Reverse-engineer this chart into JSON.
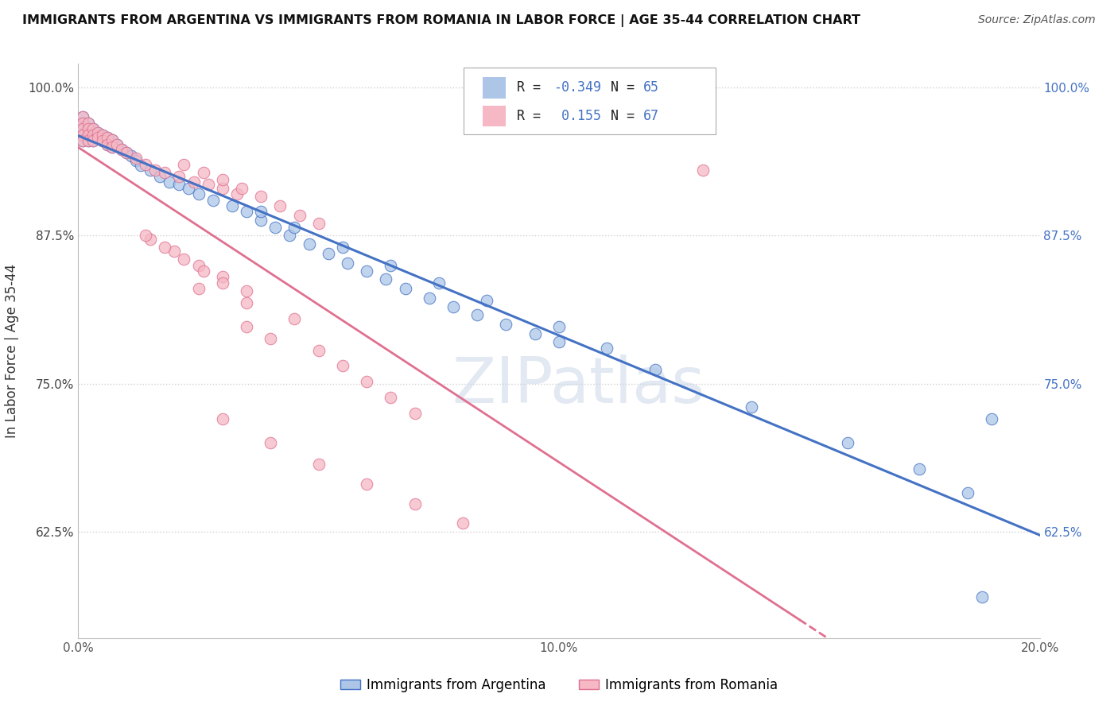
{
  "title": "IMMIGRANTS FROM ARGENTINA VS IMMIGRANTS FROM ROMANIA IN LABOR FORCE | AGE 35-44 CORRELATION CHART",
  "source": "Source: ZipAtlas.com",
  "ylabel_label": "In Labor Force | Age 35-44",
  "legend_label1": "Immigrants from Argentina",
  "legend_label2": "Immigrants from Romania",
  "R1": -0.349,
  "N1": 65,
  "R2": 0.155,
  "N2": 67,
  "color1": "#adc6e8",
  "color2": "#f5b8c4",
  "line_color1": "#4472c4",
  "line_color2": "#e07090",
  "xmin": 0.0,
  "xmax": 0.2,
  "ymin": 0.535,
  "ymax": 1.02,
  "yticks": [
    0.625,
    0.75,
    0.875,
    1.0
  ],
  "ytick_labels": [
    "62.5%",
    "75.0%",
    "87.5%",
    "100.0%"
  ],
  "xticks": [
    0.0,
    0.05,
    0.1,
    0.15,
    0.2
  ],
  "xtick_labels": [
    "0.0%",
    "",
    "10.0%",
    "",
    "20.0%"
  ],
  "watermark_text": "ZIPatlas",
  "background_color": "#ffffff",
  "grid_color": "#d0d0d0",
  "argentina_x": [
    0.001,
    0.001,
    0.001,
    0.001,
    0.001,
    0.002,
    0.002,
    0.002,
    0.002,
    0.003,
    0.003,
    0.003,
    0.004,
    0.004,
    0.005,
    0.005,
    0.006,
    0.006,
    0.007,
    0.007,
    0.008,
    0.009,
    0.01,
    0.011,
    0.012,
    0.013,
    0.015,
    0.017,
    0.019,
    0.021,
    0.023,
    0.025,
    0.028,
    0.032,
    0.035,
    0.038,
    0.041,
    0.044,
    0.048,
    0.052,
    0.056,
    0.06,
    0.064,
    0.068,
    0.073,
    0.078,
    0.083,
    0.089,
    0.095,
    0.1,
    0.038,
    0.045,
    0.055,
    0.065,
    0.075,
    0.085,
    0.1,
    0.11,
    0.12,
    0.14,
    0.16,
    0.175,
    0.185,
    0.19,
    0.188
  ],
  "argentina_y": [
    0.975,
    0.97,
    0.965,
    0.96,
    0.955,
    0.97,
    0.965,
    0.96,
    0.955,
    0.965,
    0.96,
    0.955,
    0.962,
    0.958,
    0.96,
    0.955,
    0.958,
    0.952,
    0.956,
    0.95,
    0.952,
    0.948,
    0.945,
    0.942,
    0.938,
    0.934,
    0.93,
    0.925,
    0.92,
    0.918,
    0.915,
    0.91,
    0.905,
    0.9,
    0.895,
    0.888,
    0.882,
    0.875,
    0.868,
    0.86,
    0.852,
    0.845,
    0.838,
    0.83,
    0.822,
    0.815,
    0.808,
    0.8,
    0.792,
    0.785,
    0.895,
    0.882,
    0.865,
    0.85,
    0.835,
    0.82,
    0.798,
    0.78,
    0.762,
    0.73,
    0.7,
    0.678,
    0.658,
    0.72,
    0.57
  ],
  "romania_x": [
    0.001,
    0.001,
    0.001,
    0.001,
    0.001,
    0.002,
    0.002,
    0.002,
    0.002,
    0.003,
    0.003,
    0.003,
    0.004,
    0.004,
    0.005,
    0.005,
    0.006,
    0.006,
    0.007,
    0.007,
    0.008,
    0.009,
    0.01,
    0.012,
    0.014,
    0.016,
    0.018,
    0.021,
    0.024,
    0.027,
    0.03,
    0.033,
    0.022,
    0.026,
    0.03,
    0.034,
    0.038,
    0.042,
    0.046,
    0.05,
    0.015,
    0.02,
    0.025,
    0.03,
    0.035,
    0.014,
    0.018,
    0.022,
    0.026,
    0.03,
    0.025,
    0.035,
    0.045,
    0.035,
    0.04,
    0.05,
    0.055,
    0.06,
    0.065,
    0.07,
    0.03,
    0.04,
    0.05,
    0.06,
    0.07,
    0.08,
    0.13
  ],
  "romania_y": [
    0.975,
    0.97,
    0.965,
    0.96,
    0.955,
    0.97,
    0.965,
    0.96,
    0.955,
    0.965,
    0.96,
    0.955,
    0.962,
    0.958,
    0.96,
    0.955,
    0.958,
    0.952,
    0.956,
    0.95,
    0.952,
    0.948,
    0.945,
    0.94,
    0.935,
    0.93,
    0.928,
    0.925,
    0.92,
    0.918,
    0.915,
    0.91,
    0.935,
    0.928,
    0.922,
    0.915,
    0.908,
    0.9,
    0.892,
    0.885,
    0.872,
    0.862,
    0.85,
    0.84,
    0.828,
    0.875,
    0.865,
    0.855,
    0.845,
    0.835,
    0.83,
    0.818,
    0.805,
    0.798,
    0.788,
    0.778,
    0.765,
    0.752,
    0.738,
    0.725,
    0.72,
    0.7,
    0.682,
    0.665,
    0.648,
    0.632,
    0.93
  ]
}
